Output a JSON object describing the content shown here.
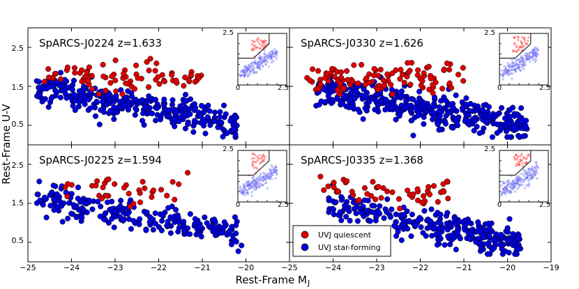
{
  "chart_data": {
    "type": "scatter",
    "xlabel": "Rest-Frame M",
    "xlabel_sub": "J",
    "ylabel": "Rest-Frame U-V",
    "xlim": [
      -25,
      -19
    ],
    "ylim": [
      0,
      3.0
    ],
    "x_ticks": [
      "−25",
      "−24",
      "−23",
      "−22",
      "−21",
      "−20",
      "−19"
    ],
    "y_ticks": [
      "0.5",
      "1.5",
      "2.5"
    ],
    "legend": {
      "position": "lower-left of bottom-right panel",
      "entries": [
        {
          "label": "UVJ quiescent",
          "color": "#dd0000"
        },
        {
          "label": "UVJ star-forming",
          "color": "#0000dd"
        }
      ]
    },
    "inset": {
      "xlim": [
        0,
        2.5
      ],
      "ylim": [
        0,
        2.5
      ],
      "x_tick_labels": [
        "0",
        "2.5"
      ],
      "y_tick_label": "2.5",
      "selection_box": "UVJ quiescent wedge: U-V > 1.3, V-J < 1.6, U-V > 0.88(V-J)+0.59"
    },
    "panels": [
      {
        "title": "SpARCS-J0224 z=1.633",
        "quiescent": {
          "n": 80,
          "x_range": [
            -24.7,
            -21.0
          ],
          "uv_mean": 1.75
        },
        "star_forming": {
          "n": 330,
          "x_range": [
            -24.8,
            -20.2
          ],
          "uv_mean": 1.0
        }
      },
      {
        "title": "SpARCS-J0330 z=1.626",
        "quiescent": {
          "n": 110,
          "x_range": [
            -24.6,
            -21.0
          ],
          "uv_mean": 1.7
        },
        "star_forming": {
          "n": 400,
          "x_range": [
            -24.4,
            -19.5
          ],
          "uv_mean": 0.95
        }
      },
      {
        "title": "SpARCS-J0225 z=1.594",
        "quiescent": {
          "n": 35,
          "x_range": [
            -24.2,
            -21.3
          ],
          "uv_mean": 1.85
        },
        "star_forming": {
          "n": 230,
          "x_range": [
            -24.8,
            -20.1
          ],
          "uv_mean": 1.15
        }
      },
      {
        "title": "SpARCS-J0335 z=1.368",
        "quiescent": {
          "n": 55,
          "x_range": [
            -24.3,
            -21.3
          ],
          "uv_mean": 1.85
        },
        "star_forming": {
          "n": 330,
          "x_range": [
            -24.1,
            -19.7
          ],
          "uv_mean": 0.95
        }
      }
    ]
  }
}
